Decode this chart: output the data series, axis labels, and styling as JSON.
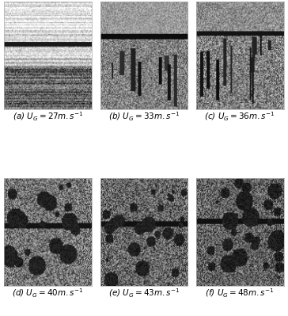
{
  "figure_size": [
    3.64,
    3.99
  ],
  "dpi": 100,
  "n_rows": 2,
  "n_cols": 3,
  "captions": [
    "(a) $U_G = 27m.s^{-1}$",
    "(b) $U_G = 33m.s^{-1}$",
    "(c) $U_G = 36m.s^{-1}$",
    "(d) $U_G = 40m.s^{-1}$",
    "(e) $U_G = 43m.s^{-1}$",
    "(f) $U_G = 48m.s^{-1}$"
  ],
  "caption_fontsize": 7.5,
  "background_color": "#ffffff"
}
